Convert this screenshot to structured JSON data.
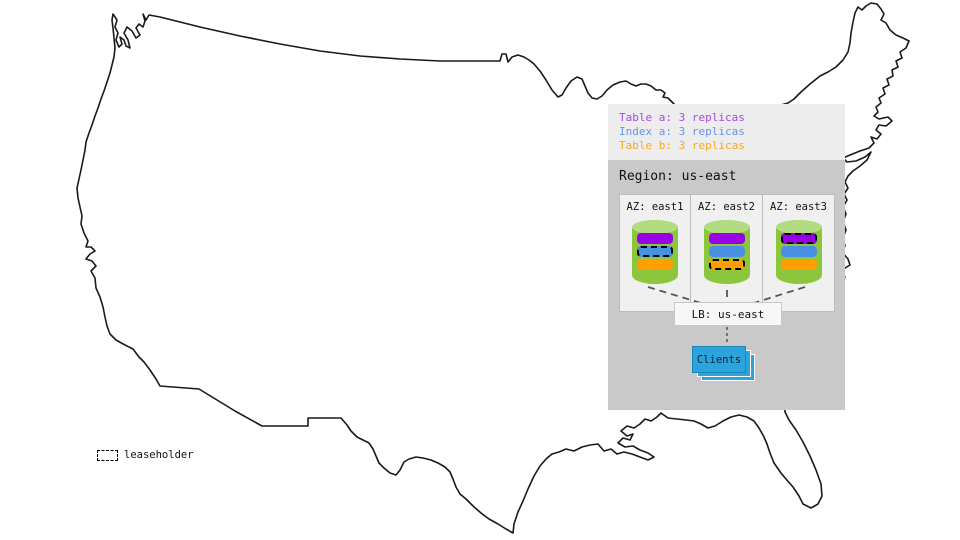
{
  "colors": {
    "panel_light": "#EDEDED",
    "panel_region": "#C9C9C9",
    "az_bg": "#F0F0F0",
    "cylinder_body": "#8CC63C",
    "cylinder_top": "#B3DC82",
    "clients_blue": "#2BA4DE",
    "replica_table_a": "#9900E6",
    "replica_index_a": "#4A90E2",
    "replica_table_b": "#FF9E00",
    "map_stroke": "#1A1A1A",
    "dash_line": "#555555"
  },
  "legend": {
    "items": [
      {
        "label": "Table a: 3 replicas",
        "color": "#A44BE3"
      },
      {
        "label": "Index a: 3 replicas",
        "color": "#6495ED"
      },
      {
        "label": "Table b: 3 replicas",
        "color": "#F9A825"
      }
    ]
  },
  "region": {
    "label": "Region: us-east",
    "azs": [
      {
        "label": "AZ: east1",
        "replicas": [
          {
            "of": "table-a",
            "color": "replica_table_a",
            "leaseholder": false
          },
          {
            "of": "index-a",
            "color": "replica_index_a",
            "leaseholder": true
          },
          {
            "of": "table-b",
            "color": "replica_table_b",
            "leaseholder": false
          }
        ]
      },
      {
        "label": "AZ: east2",
        "replicas": [
          {
            "of": "table-a",
            "color": "replica_table_a",
            "leaseholder": false
          },
          {
            "of": "index-a",
            "color": "replica_index_a",
            "leaseholder": false
          },
          {
            "of": "table-b",
            "color": "replica_table_b",
            "leaseholder": true
          }
        ]
      },
      {
        "label": "AZ: east3",
        "replicas": [
          {
            "of": "table-a",
            "color": "replica_table_a",
            "leaseholder": true
          },
          {
            "of": "index-a",
            "color": "replica_index_a",
            "leaseholder": false
          },
          {
            "of": "table-b",
            "color": "replica_table_b",
            "leaseholder": false
          }
        ]
      }
    ]
  },
  "lb": {
    "label": "LB: us-east"
  },
  "clients": {
    "label": "Clients"
  },
  "leaseholder_key": {
    "label": "leaseholder"
  }
}
